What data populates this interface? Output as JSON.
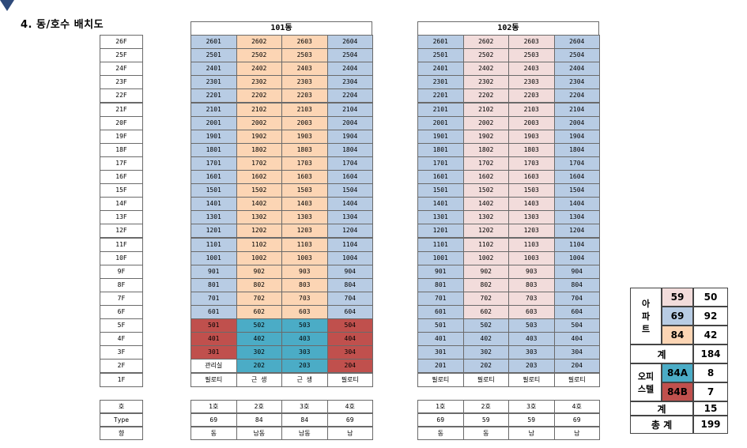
{
  "title": "4. 동/호수 배치도",
  "floors": [
    "26F",
    "25F",
    "24F",
    "23F",
    "22F",
    "21F",
    "20F",
    "19F",
    "18F",
    "17F",
    "16F",
    "15F",
    "14F",
    "13F",
    "12F",
    "11F",
    "10F",
    "9F",
    "8F",
    "7F",
    "6F",
    "5F",
    "4F",
    "3F",
    "2F",
    "1F"
  ],
  "floor_info_labels": [
    "호",
    "Type",
    "향"
  ],
  "buildings": [
    {
      "name": "101동",
      "columns": [
        "01",
        "02",
        "03",
        "04"
      ],
      "pilotis_row": [
        "필로티",
        "근 생",
        "근 생",
        "필로티"
      ],
      "special": {
        "2F_col1": "관리실"
      },
      "info": {
        "ho": [
          "1호",
          "2호",
          "3호",
          "4호"
        ],
        "type": [
          "69",
          "84",
          "84",
          "69"
        ],
        "dir": [
          "동",
          "남동",
          "남동",
          "남"
        ]
      },
      "colors": {
        "blue": "#b8cce4",
        "peach": "#fcd5b4",
        "red": "#c0504d",
        "teal": "#4bacc6"
      }
    },
    {
      "name": "102동",
      "columns": [
        "01",
        "02",
        "03",
        "04"
      ],
      "pilotis_row": [
        "필로티",
        "필로티",
        "필로티",
        "필로티"
      ],
      "info": {
        "ho": [
          "1호",
          "2호",
          "3호",
          "4호"
        ],
        "type": [
          "69",
          "59",
          "59",
          "69"
        ],
        "dir": [
          "동",
          "동",
          "남",
          "남"
        ]
      },
      "colors": {
        "blue": "#b8cce4",
        "pink": "#f2dcdb"
      }
    }
  ],
  "summary": {
    "apt_label": "아\n파\n트",
    "apt_rows": [
      {
        "type": "59",
        "count": "50",
        "color": "#f2dcdb"
      },
      {
        "type": "69",
        "count": "92",
        "color": "#b8cce4"
      },
      {
        "type": "84",
        "count": "42",
        "color": "#fcd5b4"
      }
    ],
    "subtotal_label": "계",
    "apt_total": "184",
    "office_label": "오피\n스텔",
    "office_rows": [
      {
        "type": "84A",
        "count": "8",
        "color": "#4bacc6"
      },
      {
        "type": "84B",
        "count": "7",
        "color": "#c0504d"
      }
    ],
    "office_total": "15",
    "grand_label": "총 계",
    "grand_total": "199"
  }
}
